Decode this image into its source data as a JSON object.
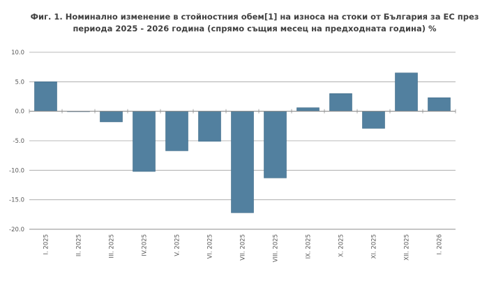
{
  "chart_data": {
    "type": "bar",
    "title": "Фиг. 1. Номинално изменение в стойностния обем[1] на износа на стоки от България за ЕС през периода 2025 - 2026 година (спрямо същия месец на предходната година) %",
    "xlabel": "",
    "ylabel": "",
    "categories": [
      "I. 2025",
      "II. 2025",
      "III. 2025",
      "IV.2025",
      "V. 2025",
      "VI. 2025",
      "VII. 2025",
      "VIII. 2025",
      "IX. 2025",
      "X. 2025",
      "XI. 2025",
      "XII. 2025",
      "I. 2026"
    ],
    "values": [
      5.0,
      0.0,
      -1.8,
      -10.2,
      -6.7,
      -5.1,
      -17.2,
      -11.3,
      0.6,
      3.0,
      -2.9,
      6.5,
      2.3
    ],
    "ylim": [
      -20.0,
      10.0
    ],
    "yticks": [
      "10.0",
      "5.0",
      "0.0",
      "-5.0",
      "-10.0",
      "-15.0",
      "-20.0"
    ],
    "grid": true,
    "legend": "none",
    "bar_color": "#52809f",
    "bar_edge_color": "#3f6a87"
  }
}
